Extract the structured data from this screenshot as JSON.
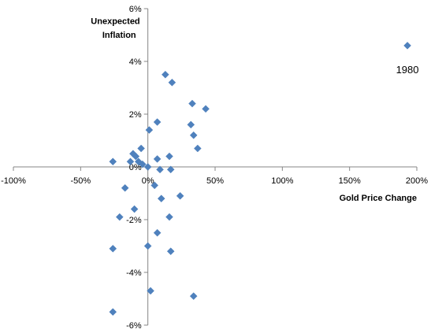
{
  "chart_data": {
    "type": "scatter",
    "title": "",
    "xlabel": "Gold Price Change",
    "ylabel_lines": [
      "Unexpected",
      "Inflation"
    ],
    "xlim": [
      -100,
      200
    ],
    "ylim": [
      -6,
      6
    ],
    "x_unit": "%",
    "y_unit": "%",
    "x_ticks": [
      {
        "value": -100,
        "label": "-100%"
      },
      {
        "value": -50,
        "label": "-50%"
      },
      {
        "value": 0,
        "label": "0%"
      },
      {
        "value": 50,
        "label": "50%"
      },
      {
        "value": 100,
        "label": "100%"
      },
      {
        "value": 150,
        "label": "150%"
      },
      {
        "value": 200,
        "label": "200%"
      }
    ],
    "y_ticks": [
      {
        "value": 6,
        "label": "6%"
      },
      {
        "value": 4,
        "label": "4%"
      },
      {
        "value": 2,
        "label": "2%"
      },
      {
        "value": 0,
        "label": "0%"
      },
      {
        "value": -2,
        "label": "-2%"
      },
      {
        "value": -4,
        "label": "-4%"
      },
      {
        "value": -6,
        "label": "-6%"
      }
    ],
    "grid": false,
    "legend": "none",
    "marker": "diamond",
    "marker_color": "#4F81BD",
    "series": [
      {
        "points": [
          {
            "x": 193,
            "y": 4.6
          },
          {
            "x": 13,
            "y": 3.5
          },
          {
            "x": 18,
            "y": 3.2
          },
          {
            "x": 33,
            "y": 2.4
          },
          {
            "x": 43,
            "y": 2.2
          },
          {
            "x": 7,
            "y": 1.7
          },
          {
            "x": 32,
            "y": 1.6
          },
          {
            "x": 1,
            "y": 1.4
          },
          {
            "x": 34,
            "y": 1.2
          },
          {
            "x": -5,
            "y": 0.7
          },
          {
            "x": 37,
            "y": 0.7
          },
          {
            "x": -11,
            "y": 0.5
          },
          {
            "x": -9,
            "y": 0.4
          },
          {
            "x": 16,
            "y": 0.4
          },
          {
            "x": 7,
            "y": 0.3
          },
          {
            "x": -26,
            "y": 0.2
          },
          {
            "x": -13,
            "y": 0.2
          },
          {
            "x": -7,
            "y": 0.2
          },
          {
            "x": -4,
            "y": 0.1
          },
          {
            "x": 0,
            "y": 0.0
          },
          {
            "x": 9,
            "y": -0.1
          },
          {
            "x": 17,
            "y": -0.1
          },
          {
            "x": 5,
            "y": -0.7
          },
          {
            "x": -17,
            "y": -0.8
          },
          {
            "x": 24,
            "y": -1.1
          },
          {
            "x": 10,
            "y": -1.2
          },
          {
            "x": -10,
            "y": -1.6
          },
          {
            "x": -21,
            "y": -1.9
          },
          {
            "x": 16,
            "y": -1.9
          },
          {
            "x": 7,
            "y": -2.5
          },
          {
            "x": 0,
            "y": -3.0
          },
          {
            "x": -26,
            "y": -3.1
          },
          {
            "x": 17,
            "y": -3.2
          },
          {
            "x": 2,
            "y": -4.7
          },
          {
            "x": 34,
            "y": -4.9
          },
          {
            "x": -26,
            "y": -5.5
          }
        ]
      }
    ],
    "annotations": [
      {
        "text": "1980",
        "x": 193,
        "y": 4.6
      }
    ]
  }
}
